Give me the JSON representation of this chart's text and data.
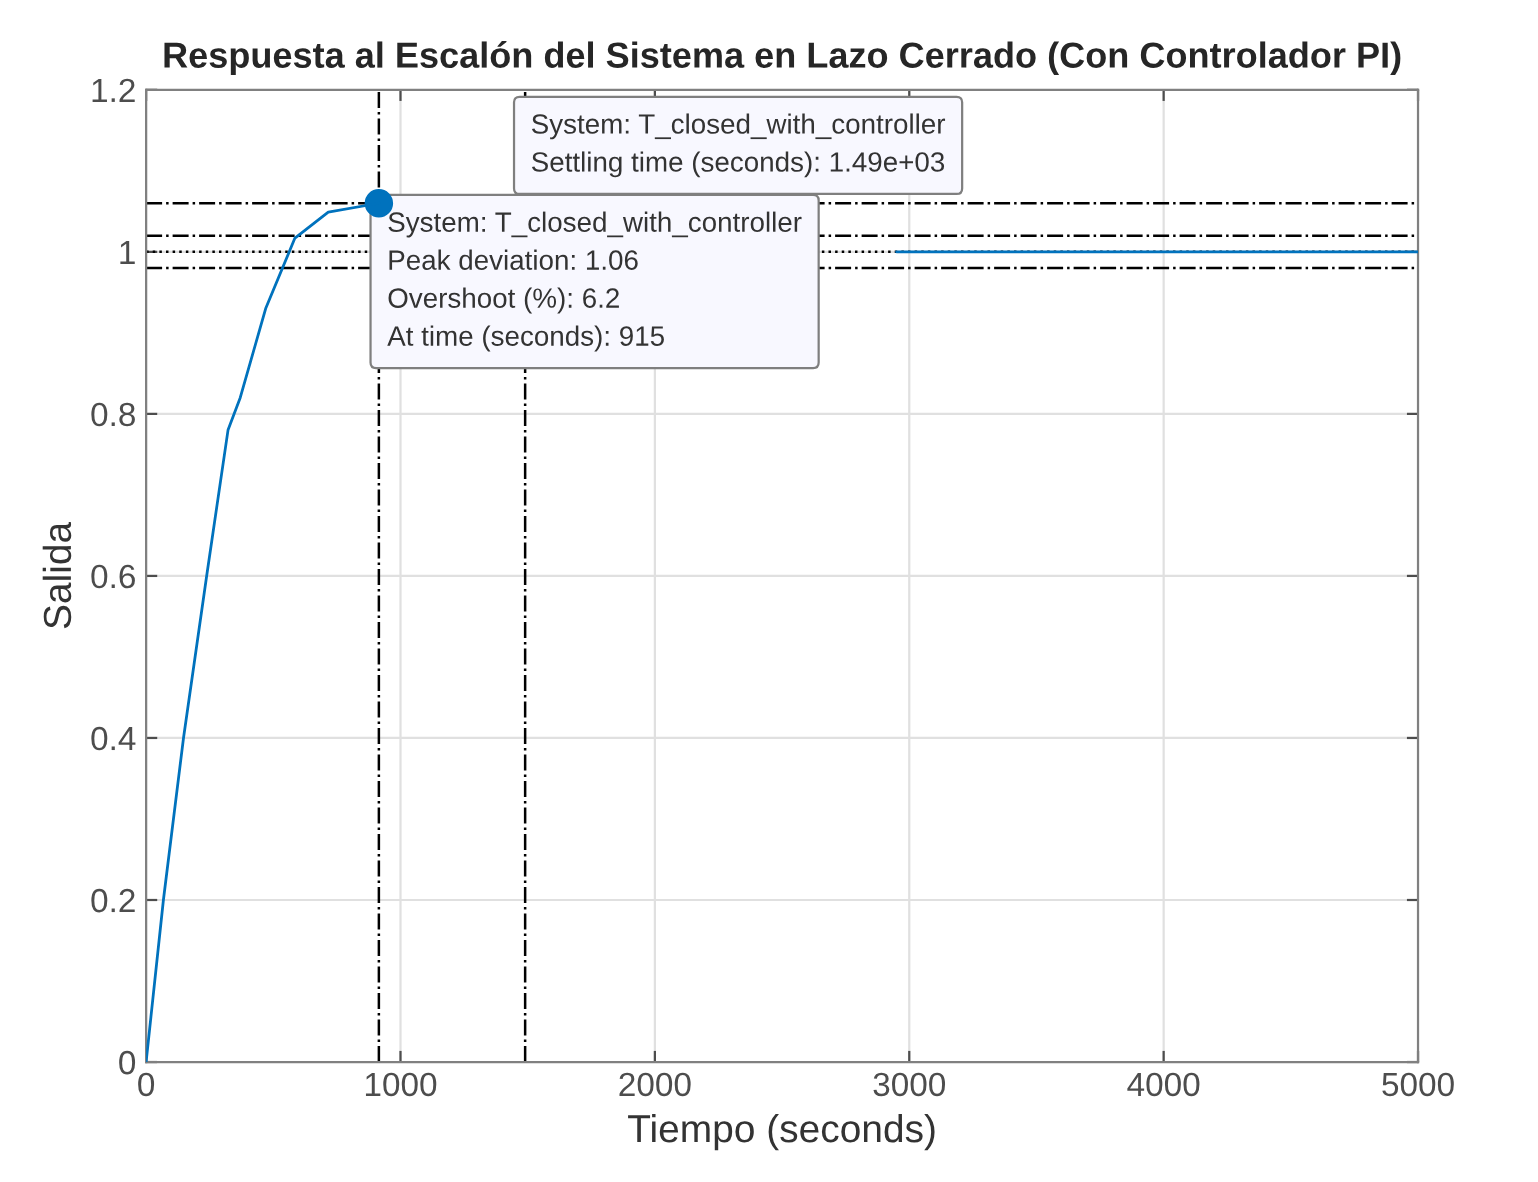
{
  "chart_data": {
    "type": "line",
    "title": "Respuesta al Escalón del Sistema en Lazo Cerrado (Con Controlador PI)",
    "xlabel": "Tiempo (seconds)",
    "ylabel": "Salida",
    "xlim": [
      0,
      5000
    ],
    "xticks": [
      0,
      1000,
      2000,
      3000,
      4000,
      5000
    ],
    "ylim": [
      0,
      1.2
    ],
    "yticks": [
      0,
      0.2,
      0.4,
      0.6,
      0.8,
      1,
      1.2
    ],
    "grid": true,
    "marker": "none",
    "line_style": "solid",
    "series": [
      {
        "color": "#0072bd",
        "x": [
          0,
          68,
          147,
          238,
          322,
          370,
          470,
          585,
          716,
          915,
          1500,
          2950,
          5000
        ],
        "values": [
          0,
          0.2,
          0.4,
          0.6,
          0.78,
          0.82,
          0.93,
          1.017,
          1.049,
          1.06,
          null,
          1.0,
          1.0
        ]
      },
      {
        "type": "scatter",
        "color": "#0072bd",
        "x": [
          915
        ],
        "values": [
          1.06
        ],
        "marker": "circle"
      }
    ],
    "ref_lines": [
      {
        "axis": "y",
        "value": 1.06,
        "color": "#000000",
        "line_style": "dashdot"
      },
      {
        "axis": "y",
        "value": 1.02,
        "color": "#000000",
        "line_style": "dashdot"
      },
      {
        "axis": "y",
        "value": 0.98,
        "color": "#000000",
        "line_style": "dashdot"
      },
      {
        "axis": "y",
        "value": 1.0,
        "color": "#000000",
        "line_style": "dotted"
      },
      {
        "axis": "x",
        "value": 915,
        "color": "#000000",
        "line_style": "dashdot"
      },
      {
        "axis": "x",
        "value": 1490,
        "color": "#000000",
        "line_style": "dashdot"
      }
    ],
    "annotations": [
      {
        "text": "System: T_closed_with_controller\nSettling time (seconds): 1.49e+03",
        "x": 1490,
        "y": 1.02
      },
      {
        "text": "System: T_closed_with_controller\nPeak deviation: 1.06\nOvershoot (%): 6.2\nAt time (seconds): 915",
        "x": 915,
        "y": 1.06
      }
    ]
  }
}
